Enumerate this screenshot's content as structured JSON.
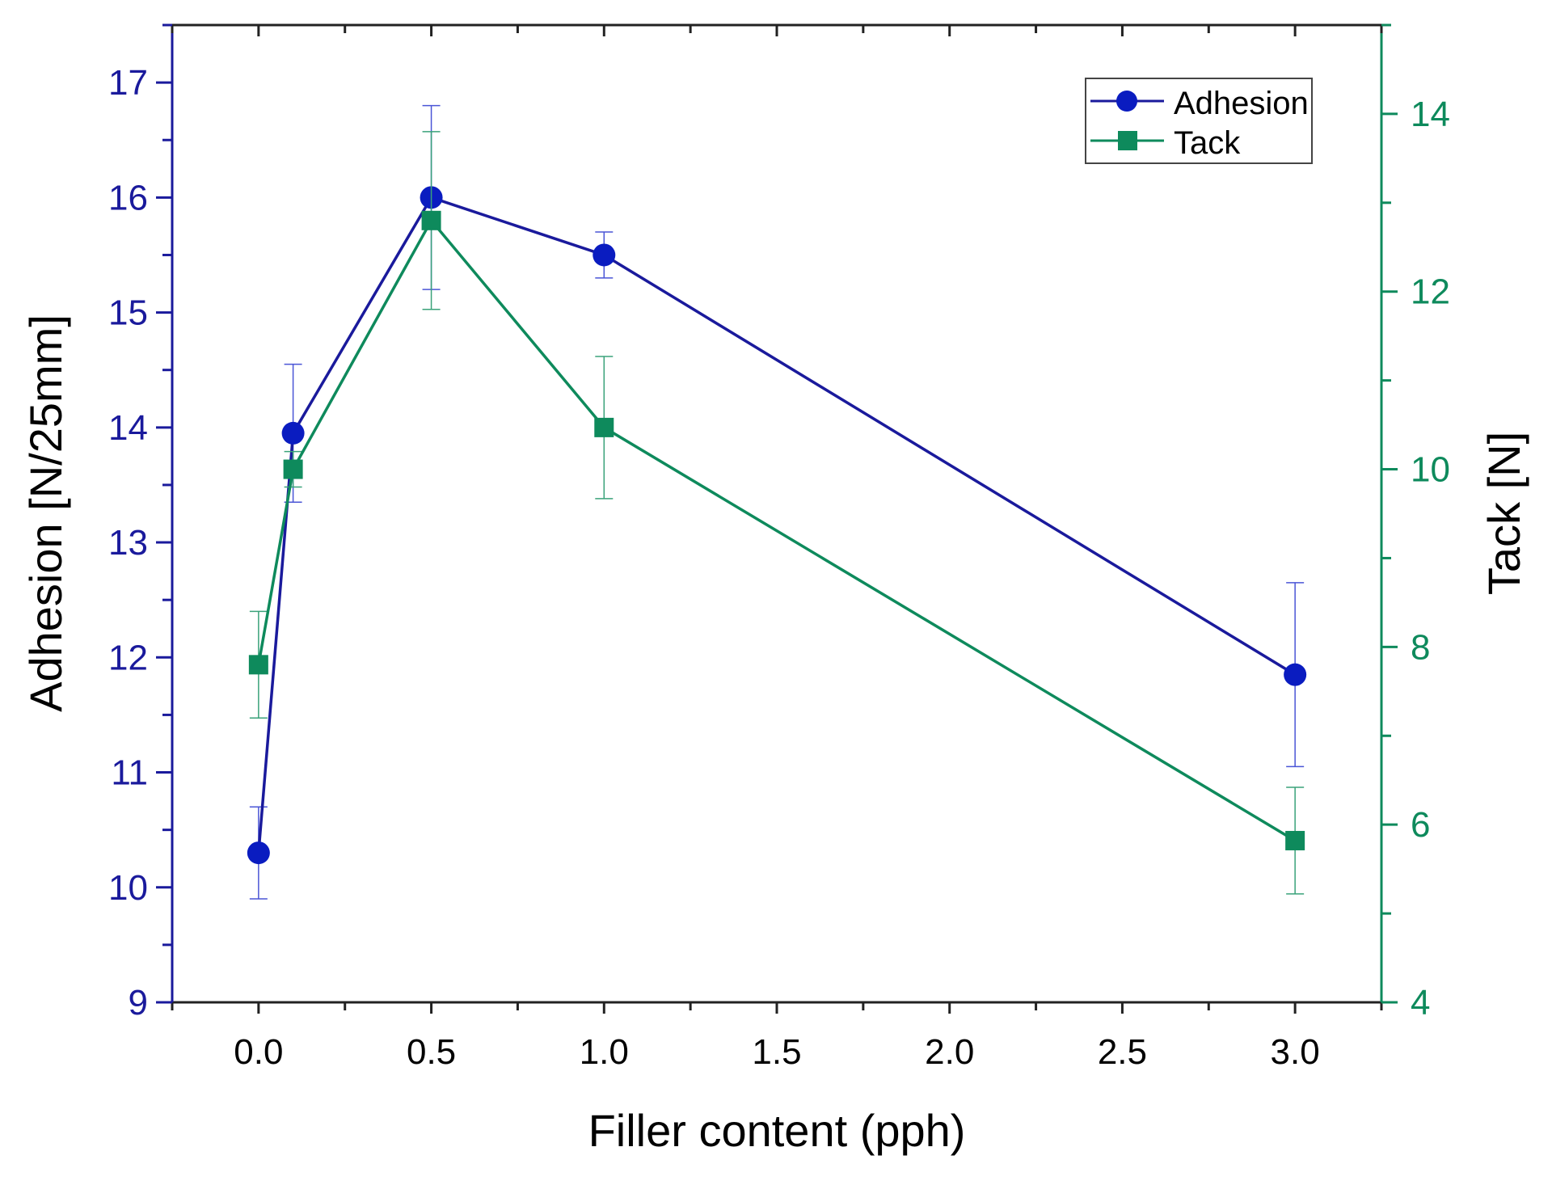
{
  "chart_data": {
    "type": "line",
    "xlabel": "Filler content (pph)",
    "ylabel": "Adhesion [N/25mm]",
    "y2label": "Tack [N]",
    "xlim": [
      -0.25,
      3.25
    ],
    "ylim": [
      9,
      17.5
    ],
    "y2lim": [
      4,
      15
    ],
    "xticks": [
      "0.0",
      "0.5",
      "1.0",
      "1.5",
      "2.0",
      "2.5",
      "3.0"
    ],
    "yticks": [
      "9",
      "10",
      "11",
      "12",
      "13",
      "14",
      "15",
      "16",
      "17"
    ],
    "y2ticks": [
      "4",
      "6",
      "8",
      "10",
      "12",
      "14"
    ],
    "grid": false,
    "legend_position": "top-right",
    "colors": {
      "adhesion": "#0a1cc0",
      "adhesion_axis": "#1a1a9c",
      "tack": "#0e8a5c"
    },
    "series": [
      {
        "name": "Adhesion",
        "axis": "left",
        "marker": "circle",
        "x": [
          0,
          0.1,
          0.5,
          1.0,
          3.0
        ],
        "y": [
          10.3,
          13.95,
          16.0,
          15.5,
          11.85
        ],
        "error": [
          0.4,
          0.6,
          0.8,
          0.2,
          0.8
        ]
      },
      {
        "name": "Tack",
        "axis": "right",
        "marker": "square",
        "x": [
          0,
          0.1,
          0.5,
          1.0,
          3.0
        ],
        "y": [
          7.8,
          10.0,
          12.8,
          10.47,
          5.82
        ],
        "error": [
          0.6,
          0.2,
          1.0,
          0.8,
          0.6
        ]
      }
    ]
  }
}
